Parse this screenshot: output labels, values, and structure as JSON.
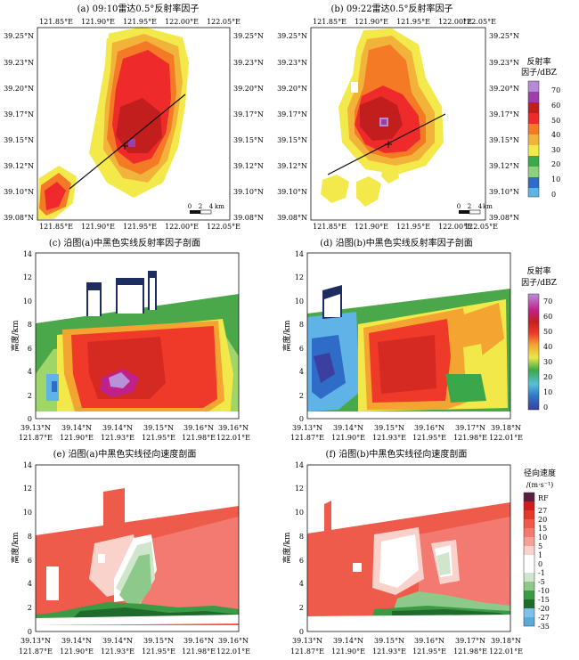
{
  "panels": {
    "a": {
      "title": "(a) 09:10雷达0.5°反射率因子"
    },
    "b": {
      "title": "(b) 09:22雷达0.5°反射率因子"
    },
    "c": {
      "title": "(c) 沿图(a)中黑色实线反射率因子剖面"
    },
    "d": {
      "title": "(d) 沿图(b)中黑色实线反射率因子剖面"
    },
    "e": {
      "title": "(e) 沿图(a)中黑色实线径向速度剖面"
    },
    "f": {
      "title": "(f) 沿图(b)中黑色实线径向速度剖面"
    }
  },
  "map_axes": {
    "lon_ticks": [
      "121.85°E",
      "121.90°E",
      "121.95°E",
      "122.00°E",
      "122.05°E"
    ],
    "lat_ticks": [
      "39.25°N",
      "39.23°N",
      "39.20°N",
      "39.17°N",
      "39.15°N",
      "39.12°N",
      "39.10°N",
      "39.08°N"
    ],
    "scalebar": {
      "labels": [
        "0",
        "2",
        "4"
      ],
      "unit": "km"
    }
  },
  "section_axes": {
    "y_label": "高度/km",
    "y_ticks": [
      "0",
      "2",
      "4",
      "6",
      "8",
      "10",
      "12",
      "14"
    ],
    "x_ticks_a": [
      [
        "39.13°N",
        "121.87°E"
      ],
      [
        "39.14°N",
        "121.90°E"
      ],
      [
        "39.14°N",
        "121.93°E"
      ],
      [
        "39.15°N",
        "121.95°E"
      ],
      [
        "39.16°N",
        "121.98°E"
      ],
      [
        "39.16°N",
        "122.01°E"
      ]
    ],
    "x_ticks_b": [
      [
        "39.13°N",
        "121.87°E"
      ],
      [
        "39.14°N",
        "121.90°E"
      ],
      [
        "39.15°N",
        "121.93°E"
      ],
      [
        "39.16°N",
        "121.95°E"
      ],
      [
        "39.17°N",
        "121.98°E"
      ],
      [
        "39.18°N",
        "122.01°E"
      ]
    ]
  },
  "legends": {
    "refl_map": {
      "title_line1": "反射率",
      "title_line2": "因子/dBZ",
      "labels": [
        "70",
        "60",
        "50",
        "40",
        "30",
        "20",
        "10",
        "0"
      ],
      "colors": [
        "#b68ad6",
        "#9c3fa8",
        "#c31e1e",
        "#ef2a2a",
        "#f47a26",
        "#f2b33a",
        "#f3e94a",
        "#3ba84a",
        "#8fd07a",
        "#2f6cc7",
        "#5fb3e6"
      ]
    },
    "refl_section": {
      "title_line1": "反射率",
      "title_line2": "因子/dBZ",
      "labels": [
        "70",
        "60",
        "50",
        "40",
        "30",
        "20",
        "10",
        "0"
      ]
    },
    "velocity": {
      "title_line1": "径向速度",
      "title_line2": "/(m·s⁻¹)",
      "labels": [
        "RF",
        "27",
        "20",
        "15",
        "10",
        "5",
        "1",
        "0",
        "-1",
        "-5",
        "-10",
        "-15",
        "-20",
        "-27",
        "-35"
      ],
      "colors": [
        "#5a1f3f",
        "#d21c1c",
        "#e23a2a",
        "#ef5b4b",
        "#f37a70",
        "#f6a097",
        "#fad2cc",
        "#ffffff",
        "#ffffff",
        "#cfe6cd",
        "#8dc98a",
        "#3b9a44",
        "#1f6b2e",
        "#7ec1e6",
        "#5aa9d6"
      ]
    }
  }
}
